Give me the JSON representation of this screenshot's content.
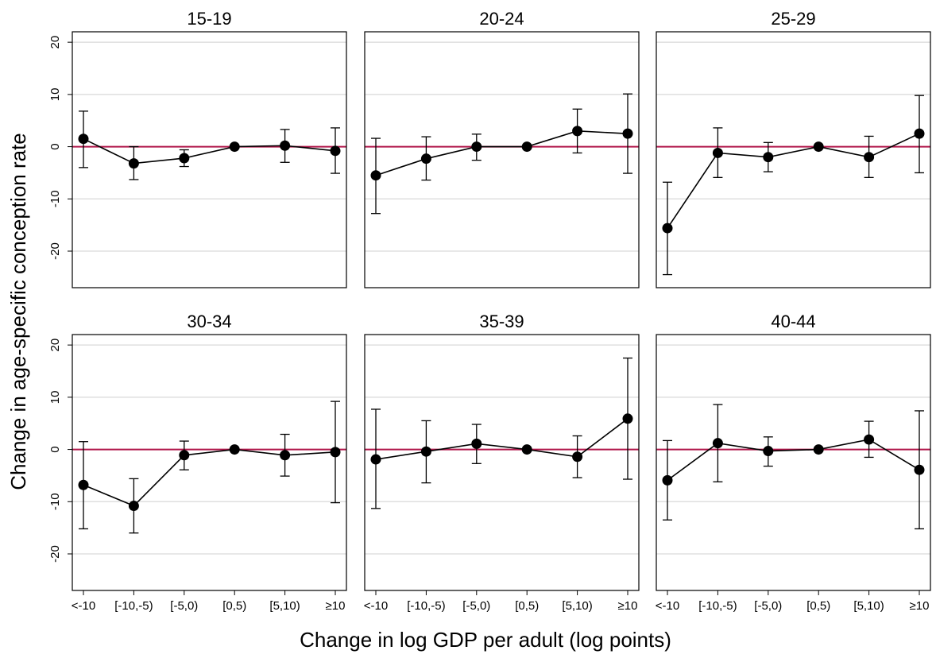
{
  "colors": {
    "reference_line": "#b0164a",
    "gridline": "#d9d9d9",
    "series": "#000000"
  },
  "chart_data": {
    "type": "line",
    "xlabel": "Change in log GDP per adult (log points)",
    "ylabel": "Change in age-specific conception rate",
    "categories": [
      "<-10",
      "[-10,-5)",
      "[-5,0)",
      "[0,5)",
      "[5,10)",
      "≥10"
    ],
    "ylim": [
      -27,
      22
    ],
    "yticks": [
      "20",
      "10",
      "0",
      "-10",
      "-20"
    ],
    "grid": true,
    "reference_line_y": 0,
    "panels": [
      {
        "title": "15-19",
        "values": [
          1.5,
          -3.2,
          -2.2,
          0,
          0.2,
          -0.8
        ],
        "ci_low": [
          -4,
          -6.3,
          -3.8,
          0,
          -3,
          -5.1
        ],
        "ci_high": [
          6.8,
          0,
          -0.6,
          0,
          3.3,
          3.6
        ]
      },
      {
        "title": "20-24",
        "values": [
          -5.5,
          -2.3,
          0,
          0,
          3,
          2.5
        ],
        "ci_low": [
          -12.8,
          -6.4,
          -2.6,
          0,
          -1.2,
          -5.1
        ],
        "ci_high": [
          1.6,
          1.9,
          2.4,
          0,
          7.2,
          10.1
        ]
      },
      {
        "title": "25-29",
        "values": [
          -15.6,
          -1.2,
          -2,
          0,
          -2,
          2.5
        ],
        "ci_low": [
          -24.5,
          -5.9,
          -4.8,
          0,
          -5.9,
          -5
        ],
        "ci_high": [
          -6.8,
          3.6,
          0.8,
          0,
          2,
          9.8
        ]
      },
      {
        "title": "30-34",
        "values": [
          -6.8,
          -10.8,
          -1.1,
          0,
          -1.1,
          -0.5
        ],
        "ci_low": [
          -15.2,
          -16,
          -3.9,
          0,
          -5.1,
          -10.2
        ],
        "ci_high": [
          1.5,
          -5.6,
          1.6,
          0,
          2.9,
          9.2
        ]
      },
      {
        "title": "35-39",
        "values": [
          -1.9,
          -0.4,
          1.1,
          0,
          -1.4,
          5.9
        ],
        "ci_low": [
          -11.3,
          -6.4,
          -2.7,
          0,
          -5.4,
          -5.7
        ],
        "ci_high": [
          7.7,
          5.5,
          4.8,
          0,
          2.6,
          17.5
        ]
      },
      {
        "title": "40-44",
        "values": [
          -5.9,
          1.2,
          -0.3,
          0,
          1.9,
          -3.9
        ],
        "ci_low": [
          -13.5,
          -6.2,
          -3.2,
          0,
          -1.5,
          -15.2
        ],
        "ci_high": [
          1.7,
          8.6,
          2.4,
          0,
          5.4,
          7.4
        ]
      }
    ]
  }
}
